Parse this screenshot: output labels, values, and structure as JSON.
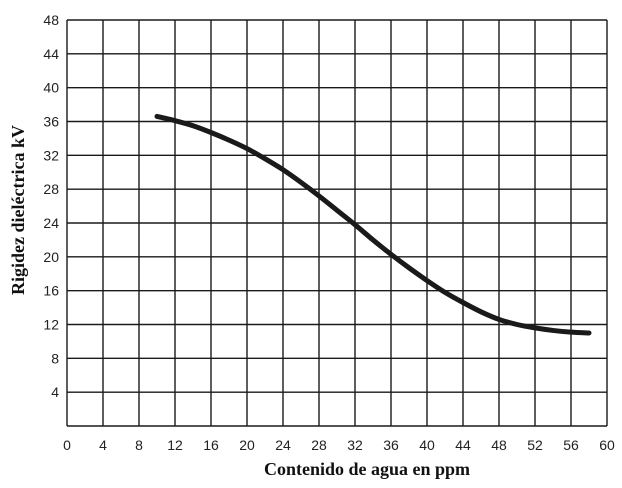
{
  "chart_data": {
    "type": "line",
    "title": "",
    "xlabel": "Contenido de agua en ppm",
    "ylabel": "Rigidez dieléctrica kV",
    "xlim": [
      0,
      60
    ],
    "ylim": [
      0,
      48
    ],
    "xticks": [
      0,
      4,
      8,
      12,
      16,
      20,
      24,
      28,
      32,
      36,
      40,
      44,
      48,
      52,
      56,
      60
    ],
    "yticks": [
      4,
      8,
      12,
      16,
      20,
      24,
      28,
      32,
      36,
      40,
      44,
      48
    ],
    "grid": true,
    "series": [
      {
        "x": [
          10,
          12,
          14,
          16,
          18,
          20,
          22,
          24,
          26,
          28,
          30,
          32,
          34,
          36,
          38,
          40,
          42,
          44,
          46,
          48,
          50,
          52,
          54,
          56,
          58
        ],
        "y": [
          36.6,
          36.1,
          35.5,
          34.7,
          33.8,
          32.8,
          31.6,
          30.3,
          28.8,
          27.2,
          25.5,
          23.8,
          22.0,
          20.3,
          18.7,
          17.2,
          15.8,
          14.6,
          13.5,
          12.6,
          12.0,
          11.6,
          11.3,
          11.1,
          11.0
        ]
      }
    ],
    "colors": {
      "line": "#1a1a1a",
      "grid": "#1a1a1a"
    }
  }
}
